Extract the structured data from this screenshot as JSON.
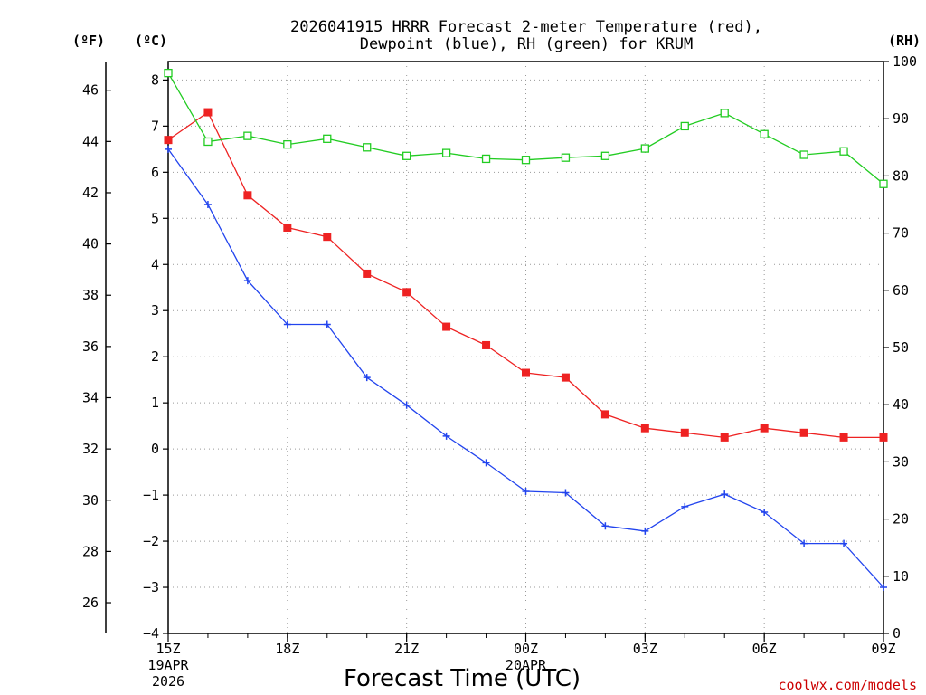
{
  "chart_data": {
    "type": "line",
    "title_line1": "2026041915 HRRR Forecast 2-meter Temperature (red),",
    "title_line2": "Dewpoint (blue), RH (green) for KRUM",
    "left_unit_f": "(ºF)",
    "left_unit_c": "(ºC)",
    "right_unit": "(RH)",
    "xlabel": "Forecast Time (UTC)",
    "credit": "coolwx.com/models",
    "x_hours": [
      0,
      1,
      2,
      3,
      4,
      5,
      6,
      7,
      8,
      9,
      10,
      11,
      12,
      13,
      14,
      15,
      16,
      17,
      18
    ],
    "x_ticks": [
      {
        "hour": 0,
        "label": "15Z",
        "sub1": "19APR",
        "sub2": "2026"
      },
      {
        "hour": 3,
        "label": "18Z"
      },
      {
        "hour": 6,
        "label": "21Z"
      },
      {
        "hour": 9,
        "label": "00Z",
        "sub1": "20APR"
      },
      {
        "hour": 12,
        "label": "03Z"
      },
      {
        "hour": 15,
        "label": "06Z"
      },
      {
        "hour": 18,
        "label": "09Z"
      }
    ],
    "y_celsius": {
      "min": -4,
      "max": 8.4,
      "ticks": [
        -4,
        -3,
        -2,
        -1,
        0,
        1,
        2,
        3,
        4,
        5,
        6,
        7,
        8
      ],
      "tick_labels": [
        "−4",
        "−3",
        "−2",
        "−1",
        "0",
        "1",
        "2",
        "3",
        "4",
        "5",
        "6",
        "7",
        "8"
      ]
    },
    "y_fahrenheit": {
      "ticks": [
        26,
        28,
        30,
        32,
        34,
        36,
        38,
        40,
        42,
        44,
        46
      ],
      "tick_labels": [
        "26",
        "28",
        "30",
        "32",
        "34",
        "36",
        "38",
        "40",
        "42",
        "44",
        "46"
      ]
    },
    "y_rh": {
      "min": 0,
      "max": 100,
      "ticks": [
        0,
        10,
        20,
        30,
        40,
        50,
        60,
        70,
        80,
        90,
        100
      ],
      "tick_labels": [
        "0",
        "10",
        "20",
        "30",
        "40",
        "50",
        "60",
        "70",
        "80",
        "90",
        "100"
      ]
    },
    "series": [
      {
        "name": "Temperature",
        "color": "#ee2222",
        "marker": "filled-square",
        "axis": "celsius",
        "values": [
          6.7,
          7.3,
          5.5,
          4.8,
          4.6,
          3.8,
          3.4,
          2.65,
          2.25,
          1.65,
          1.55,
          0.75,
          0.45,
          0.35,
          0.25,
          0.45,
          0.35,
          0.25,
          0.25
        ]
      },
      {
        "name": "Dewpoint",
        "color": "#2244ee",
        "marker": "plus",
        "axis": "celsius",
        "values": [
          6.5,
          5.3,
          3.65,
          2.7,
          2.7,
          1.55,
          0.95,
          0.28,
          -0.3,
          -0.92,
          -0.95,
          -1.67,
          -1.78,
          -1.25,
          -0.98,
          -1.37,
          -2.05,
          -2.05,
          -3.0
        ]
      },
      {
        "name": "RH",
        "color": "#22cc22",
        "marker": "open-square",
        "axis": "rh",
        "values": [
          98,
          86,
          87,
          85.5,
          86.5,
          85,
          83.5,
          84,
          83,
          82.8,
          83.2,
          83.5,
          84.8,
          88.7,
          91,
          87.3,
          83.7,
          84.3,
          78.6
        ]
      }
    ]
  }
}
